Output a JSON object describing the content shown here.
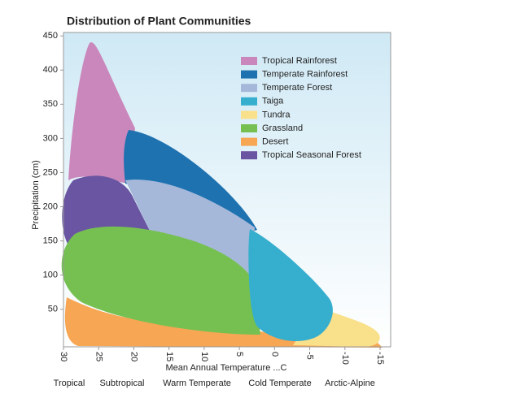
{
  "chart_data": {
    "type": "region",
    "title": "Distribution of Plant Communities",
    "x_label": "Mean Annual Temperature ...C",
    "y_label": "Precipitation (cm)",
    "xlim": [
      30,
      -16.5
    ],
    "ylim": [
      -5,
      455
    ],
    "xticks": [
      30,
      25,
      20,
      15,
      10,
      5,
      0,
      -5,
      -10,
      -15
    ],
    "yticks": [
      50,
      100,
      150,
      200,
      250,
      300,
      350,
      400,
      450
    ],
    "zones": [
      "Tropical",
      "Subtropical",
      "Warm Temperate",
      "Cold Temperate",
      "Arctic-Alpine"
    ],
    "series": [
      {
        "name": "Tropical Rainforest",
        "color": "#c987bb"
      },
      {
        "name": "Temperate Rainforest",
        "color": "#1e72b0"
      },
      {
        "name": "Temperate Forest",
        "color": "#a6b8da"
      },
      {
        "name": "Taiga",
        "color": "#36aece"
      },
      {
        "name": "Tundra",
        "color": "#f9e08a"
      },
      {
        "name": "Grassland",
        "color": "#76c052"
      },
      {
        "name": "Desert",
        "color": "#f7a653"
      },
      {
        "name": "Tropical Seasonal Forest",
        "color": "#6a55a2"
      }
    ],
    "background_gradient": [
      "#cfe9f5",
      "#ffffff"
    ]
  }
}
